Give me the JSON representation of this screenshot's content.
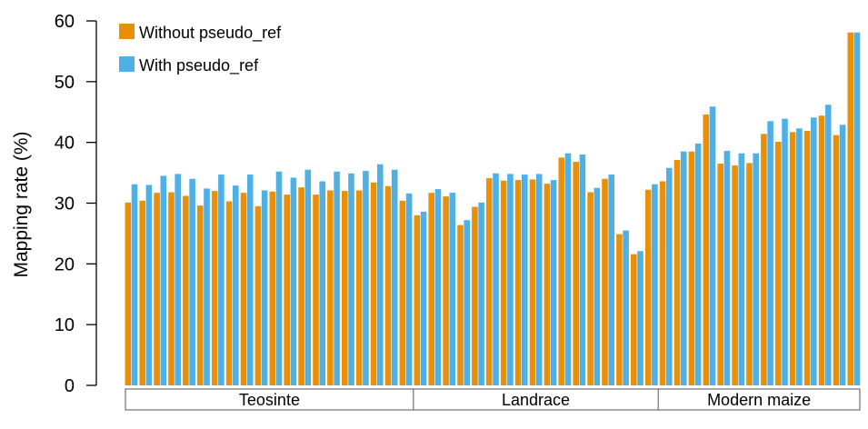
{
  "colors": {
    "without": "#E8900A",
    "with": "#4FB0E6",
    "axis": "#000000",
    "background": "#ffffff"
  },
  "chart_data": {
    "type": "bar",
    "title": "",
    "xlabel": "",
    "ylabel": "Mapping rate (%)",
    "ylim": [
      0,
      60
    ],
    "yticks": [
      0,
      10,
      20,
      30,
      40,
      50,
      60
    ],
    "legend_placement": "top-left",
    "grid": false,
    "groups": [
      {
        "label": "Teosinte",
        "count": 20
      },
      {
        "label": "Landrace",
        "count": 17
      },
      {
        "label": "Modern maize",
        "count": 14
      }
    ],
    "series": [
      {
        "name": "Without pseudo_ref",
        "values": [
          30.1,
          30.4,
          31.7,
          31.8,
          31.2,
          29.6,
          32.0,
          30.3,
          31.7,
          29.5,
          31.9,
          31.4,
          32.6,
          31.4,
          32.1,
          32.0,
          32.1,
          33.4,
          32.8,
          30.4,
          28.0,
          31.7,
          31.1,
          26.4,
          29.4,
          34.1,
          33.7,
          33.8,
          33.9,
          33.2,
          37.5,
          36.8,
          31.8,
          34.0,
          24.9,
          21.6,
          32.2,
          33.6,
          37.1,
          38.5,
          44.6,
          36.5,
          36.2,
          36.6,
          41.4,
          40.1,
          41.7,
          41.9,
          44.4,
          41.2,
          58.1
        ]
      },
      {
        "name": "With pseudo_ref",
        "values": [
          33.1,
          33.0,
          34.5,
          34.8,
          34.0,
          32.4,
          34.7,
          32.9,
          34.7,
          32.1,
          35.2,
          34.2,
          35.5,
          33.6,
          35.2,
          34.9,
          35.3,
          36.4,
          35.5,
          31.6,
          28.6,
          32.3,
          31.7,
          27.2,
          30.1,
          34.9,
          34.8,
          34.7,
          34.8,
          33.8,
          38.2,
          38.0,
          32.5,
          34.7,
          25.5,
          22.1,
          33.1,
          35.8,
          38.5,
          39.8,
          45.9,
          38.6,
          38.2,
          38.2,
          43.5,
          43.9,
          42.3,
          44.1,
          46.2,
          42.9,
          58.1
        ]
      }
    ]
  }
}
